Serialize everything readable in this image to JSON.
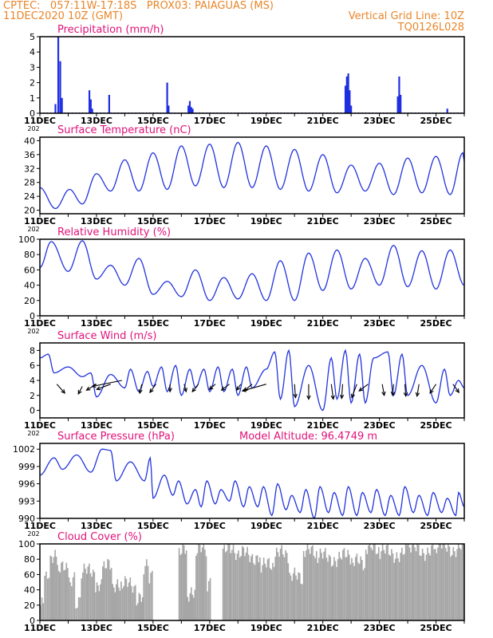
{
  "header": {
    "line1": "CPTEC:   057:11W-17:18S   PROX03: PAIAGUAS (MS)",
    "line2": "11DEC2020 10Z (GMT)",
    "grid_note": "Vertical Grid Line: 10Z",
    "code": "TQ0126L028"
  },
  "colors": {
    "header": "#e8862a",
    "title": "#e0127a",
    "line": "#2233dd",
    "bar": "#1f2fe0",
    "cloud": "#a6a6a6",
    "frame": "#000000"
  },
  "x_tick_labels": [
    "11DEC",
    "13DEC",
    "15DEC",
    "17DEC",
    "19DEC",
    "21DEC",
    "23DEC",
    "25DEC"
  ],
  "partial_year": "202",
  "chart_data": [
    {
      "type": "bar",
      "key": "precip",
      "title": "Precipitation  (mm/h)",
      "ylim": [
        0,
        5
      ],
      "yticks": [
        0,
        1,
        2,
        3,
        4,
        5
      ],
      "ytick_labels": [
        "0",
        "1",
        "2",
        "3",
        "4",
        "5"
      ],
      "x": [
        0.55,
        0.65,
        0.72,
        0.78,
        1.75,
        1.8,
        1.85,
        2.45,
        4.5,
        4.55,
        5.25,
        5.3,
        5.35,
        5.4,
        10.8,
        10.85,
        10.9,
        10.95,
        11.0,
        12.65,
        12.7,
        12.75,
        14.4
      ],
      "values": [
        0.6,
        5.0,
        3.4,
        1.0,
        1.5,
        0.9,
        0.3,
        1.2,
        2.0,
        0.5,
        0.5,
        0.8,
        0.4,
        0.3,
        1.8,
        2.4,
        2.6,
        1.5,
        0.5,
        1.1,
        2.4,
        1.2,
        0.3
      ]
    },
    {
      "type": "line",
      "key": "temp",
      "title": "Surface Temperature (nC)",
      "ylim": [
        19,
        41
      ],
      "yticks": [
        20,
        24,
        28,
        32,
        36,
        40
      ],
      "ytick_labels": [
        "20",
        "24",
        "28",
        "32",
        "36",
        "40"
      ],
      "minima": [
        [
          0.55,
          20.5
        ],
        [
          1.5,
          21.8
        ],
        [
          2.5,
          25.5
        ],
        [
          3.5,
          25.5
        ],
        [
          4.5,
          26
        ],
        [
          5.5,
          27
        ],
        [
          6.5,
          26.5
        ],
        [
          7.5,
          26.5
        ],
        [
          8.5,
          26
        ],
        [
          9.5,
          25.5
        ],
        [
          10.5,
          25
        ],
        [
          11.5,
          25.5
        ],
        [
          12.5,
          24.5
        ],
        [
          13.5,
          25
        ],
        [
          14.5,
          24.5
        ]
      ],
      "maxima": [
        [
          0.0,
          26.5
        ],
        [
          1.05,
          26
        ],
        [
          2.0,
          30.5
        ],
        [
          3.0,
          34.5
        ],
        [
          4.0,
          36.5
        ],
        [
          5.0,
          38.5
        ],
        [
          6.0,
          39
        ],
        [
          7.0,
          39.5
        ],
        [
          8.0,
          38.5
        ],
        [
          9.0,
          37.5
        ],
        [
          10.0,
          36
        ],
        [
          11.0,
          33
        ],
        [
          12.0,
          33.5
        ],
        [
          13.0,
          35
        ],
        [
          14.0,
          35.5
        ],
        [
          14.95,
          36.5
        ],
        [
          15.0,
          34
        ]
      ]
    },
    {
      "type": "line",
      "key": "rh",
      "title": "Relative Humidity (%)",
      "ylim": [
        0,
        100
      ],
      "yticks": [
        0,
        20,
        40,
        60,
        80,
        100
      ],
      "ytick_labels": [
        "0",
        "20",
        "40",
        "60",
        "80",
        "100"
      ],
      "minima": [
        [
          0.0,
          63
        ],
        [
          1.0,
          58
        ],
        [
          2.0,
          48
        ],
        [
          3.0,
          40
        ],
        [
          4.0,
          28
        ],
        [
          5.0,
          25
        ],
        [
          6.0,
          20
        ],
        [
          7.0,
          22
        ],
        [
          8.0,
          20
        ],
        [
          9.0,
          20
        ],
        [
          10.0,
          33
        ],
        [
          11.0,
          35
        ],
        [
          12.0,
          40
        ],
        [
          13.0,
          38
        ],
        [
          14.0,
          35
        ],
        [
          15.0,
          40
        ]
      ],
      "maxima": [
        [
          0.4,
          97
        ],
        [
          1.5,
          98
        ],
        [
          2.5,
          66
        ],
        [
          3.5,
          75
        ],
        [
          4.5,
          45
        ],
        [
          5.5,
          60
        ],
        [
          6.5,
          50
        ],
        [
          7.5,
          55
        ],
        [
          8.5,
          72
        ],
        [
          9.5,
          82
        ],
        [
          10.5,
          86
        ],
        [
          11.5,
          75
        ],
        [
          12.5,
          92
        ],
        [
          13.5,
          85
        ],
        [
          14.5,
          86
        ]
      ]
    },
    {
      "type": "line",
      "key": "wind",
      "title": "Surface Wind (m/s)",
      "ylim": [
        -1,
        9
      ],
      "yticks": [
        0,
        2,
        4,
        6,
        8
      ],
      "ytick_labels": [
        "0",
        "2",
        "4",
        "6",
        "8"
      ],
      "minima": [
        [
          0.5,
          5
        ],
        [
          1.5,
          4.5
        ],
        [
          2.0,
          1.8
        ],
        [
          3.0,
          3
        ],
        [
          3.5,
          2.5
        ],
        [
          4.0,
          3.2
        ],
        [
          4.5,
          2.5
        ],
        [
          5.0,
          2
        ],
        [
          5.5,
          3
        ],
        [
          6.0,
          2.5
        ],
        [
          6.5,
          2.5
        ],
        [
          7.0,
          2
        ],
        [
          7.5,
          3
        ],
        [
          8.5,
          1.5
        ],
        [
          9.0,
          0.5
        ],
        [
          10.0,
          0
        ],
        [
          10.5,
          1.5
        ],
        [
          11.0,
          1
        ],
        [
          11.5,
          1
        ],
        [
          12.5,
          2
        ],
        [
          13.0,
          2
        ],
        [
          14.0,
          1
        ],
        [
          14.5,
          2
        ],
        [
          15.0,
          3
        ]
      ],
      "maxima": [
        [
          0.0,
          7
        ],
        [
          0.3,
          7.5
        ],
        [
          1.0,
          5.8
        ],
        [
          1.8,
          5
        ],
        [
          2.5,
          4.8
        ],
        [
          3.2,
          5.5
        ],
        [
          3.8,
          5.2
        ],
        [
          4.3,
          5.8
        ],
        [
          4.8,
          6
        ],
        [
          5.3,
          5.5
        ],
        [
          5.8,
          5.5
        ],
        [
          6.3,
          5.8
        ],
        [
          6.8,
          5.5
        ],
        [
          7.3,
          5.8
        ],
        [
          8.0,
          5.5
        ],
        [
          8.3,
          7.8
        ],
        [
          8.8,
          8
        ],
        [
          9.5,
          6
        ],
        [
          10.3,
          7
        ],
        [
          10.8,
          8
        ],
        [
          11.3,
          7.5
        ],
        [
          11.8,
          7
        ],
        [
          12.3,
          7.8
        ],
        [
          12.8,
          7.5
        ],
        [
          13.5,
          6
        ],
        [
          14.3,
          5.5
        ],
        [
          14.8,
          4
        ]
      ],
      "arrows": [
        [
          0.6,
          3.5,
          0.4,
          -1.2
        ],
        [
          1.5,
          3.2,
          -0.2,
          -1.0
        ],
        [
          2.0,
          3.5,
          -0.5,
          -0.8
        ],
        [
          2.5,
          3.5,
          -0.7,
          -0.7
        ],
        [
          2.9,
          4.0,
          -1.5,
          -0.8
        ],
        [
          3.6,
          3.5,
          -0.1,
          -1.2
        ],
        [
          4.1,
          3.5,
          -0.3,
          -1.1
        ],
        [
          4.6,
          3.5,
          0,
          -1.0
        ],
        [
          5.1,
          3.5,
          0.1,
          -1.0
        ],
        [
          5.6,
          3.5,
          -0.3,
          -1.0
        ],
        [
          6.2,
          3.5,
          -0.3,
          -0.7
        ],
        [
          6.7,
          3.5,
          -0.4,
          -0.8
        ],
        [
          7.1,
          3.5,
          -0.2,
          -0.8
        ],
        [
          7.5,
          3.5,
          -0.4,
          -0.9
        ],
        [
          8.0,
          3.5,
          -1.2,
          -0.9
        ],
        [
          9.0,
          3.5,
          0.05,
          -1.8
        ],
        [
          9.5,
          3.5,
          0,
          -2.0
        ],
        [
          10.3,
          3.5,
          0.1,
          -2.0
        ],
        [
          10.7,
          3.5,
          -0.05,
          -1.9
        ],
        [
          11.2,
          3.5,
          -0.25,
          -1.8
        ],
        [
          11.6,
          3.5,
          -0.45,
          -0.9
        ],
        [
          12.1,
          3.5,
          0.1,
          -1.5
        ],
        [
          12.5,
          3.5,
          -0.05,
          -1.5
        ],
        [
          12.9,
          3.5,
          0.05,
          -1.6
        ],
        [
          13.4,
          3.5,
          -0.1,
          -1.6
        ],
        [
          14.0,
          3.5,
          -0.3,
          -1.2
        ],
        [
          14.6,
          3.5,
          0.3,
          -1.1
        ]
      ]
    },
    {
      "type": "line",
      "key": "press",
      "title": "Surface Pressure (hPa)",
      "extra": "Model Altitude: 96.4749  m",
      "ylim": [
        990,
        1003
      ],
      "yticks": [
        990,
        993,
        996,
        999,
        1002
      ],
      "ytick_labels": [
        "990",
        "993",
        "996",
        "999",
        "1002"
      ],
      "minima": [
        [
          0.0,
          997.5
        ],
        [
          0.8,
          998.5
        ],
        [
          1.8,
          998
        ],
        [
          2.7,
          996.5
        ],
        [
          3.7,
          996.5
        ],
        [
          4.0,
          993.5
        ],
        [
          4.7,
          994
        ],
        [
          5.2,
          992.5
        ],
        [
          5.7,
          992
        ],
        [
          6.2,
          992.5
        ],
        [
          6.7,
          993
        ],
        [
          7.2,
          992
        ],
        [
          7.7,
          992
        ],
        [
          8.2,
          990.5
        ],
        [
          8.7,
          991.5
        ],
        [
          9.2,
          991
        ],
        [
          9.7,
          990
        ],
        [
          10.2,
          991
        ],
        [
          10.7,
          990.5
        ],
        [
          11.2,
          990.5
        ],
        [
          11.7,
          991
        ],
        [
          12.2,
          990.5
        ],
        [
          12.7,
          990.5
        ],
        [
          13.2,
          991
        ],
        [
          13.7,
          990.5
        ],
        [
          14.2,
          991
        ],
        [
          14.7,
          990.5
        ],
        [
          15.0,
          992
        ]
      ],
      "maxima": [
        [
          0.5,
          1000.5
        ],
        [
          1.3,
          1001
        ],
        [
          2.2,
          1002
        ],
        [
          2.5,
          1001.8
        ],
        [
          3.2,
          999.8
        ],
        [
          3.9,
          1000.5
        ],
        [
          4.4,
          997.5
        ],
        [
          4.9,
          996.5
        ],
        [
          5.5,
          995
        ],
        [
          5.9,
          996.5
        ],
        [
          6.4,
          995
        ],
        [
          6.9,
          996.5
        ],
        [
          7.4,
          995.5
        ],
        [
          7.9,
          995.5
        ],
        [
          8.4,
          996
        ],
        [
          8.9,
          994
        ],
        [
          9.4,
          995
        ],
        [
          9.9,
          995.5
        ],
        [
          10.4,
          994.5
        ],
        [
          10.9,
          995.5
        ],
        [
          11.4,
          994.5
        ],
        [
          11.9,
          995
        ],
        [
          12.4,
          994
        ],
        [
          12.9,
          995.5
        ],
        [
          13.4,
          994
        ],
        [
          13.9,
          994.5
        ],
        [
          14.4,
          993.5
        ],
        [
          14.8,
          994.5
        ]
      ]
    },
    {
      "type": "bar",
      "key": "cloud",
      "title": "Cloud Cover (%)",
      "ylim": [
        0,
        100
      ],
      "yticks": [
        0,
        20,
        40,
        60,
        80,
        100
      ],
      "ytick_labels": [
        "0",
        "20",
        "40",
        "60",
        "80",
        "100"
      ],
      "segments": [
        [
          0.0,
          0.15,
          20
        ],
        [
          0.15,
          0.35,
          55
        ],
        [
          0.35,
          0.6,
          78
        ],
        [
          0.6,
          1.05,
          65
        ],
        [
          1.05,
          1.25,
          50
        ],
        [
          1.25,
          1.45,
          20
        ],
        [
          1.45,
          1.95,
          62
        ],
        [
          1.95,
          2.2,
          40
        ],
        [
          2.2,
          2.55,
          68
        ],
        [
          2.55,
          2.85,
          40
        ],
        [
          2.85,
          3.4,
          45
        ],
        [
          3.4,
          3.65,
          25
        ],
        [
          3.65,
          3.85,
          68
        ],
        [
          3.85,
          4.0,
          55
        ],
        [
          4.0,
          4.9,
          0
        ],
        [
          4.9,
          5.2,
          88
        ],
        [
          5.2,
          5.5,
          30
        ],
        [
          5.5,
          5.9,
          90
        ],
        [
          5.9,
          6.05,
          45
        ],
        [
          6.05,
          6.45,
          0
        ],
        [
          6.45,
          7.0,
          90
        ],
        [
          7.0,
          7.8,
          85
        ],
        [
          7.8,
          8.3,
          70
        ],
        [
          8.3,
          8.8,
          85
        ],
        [
          8.8,
          9.3,
          55
        ],
        [
          9.3,
          9.8,
          88
        ],
        [
          9.8,
          11.0,
          82
        ],
        [
          11.0,
          11.5,
          74
        ],
        [
          11.5,
          12.0,
          92
        ],
        [
          12.0,
          13.0,
          88
        ],
        [
          13.0,
          14.0,
          92
        ],
        [
          14.0,
          15.0,
          95
        ]
      ],
      "sawtooth_amplitude": 22
    }
  ]
}
